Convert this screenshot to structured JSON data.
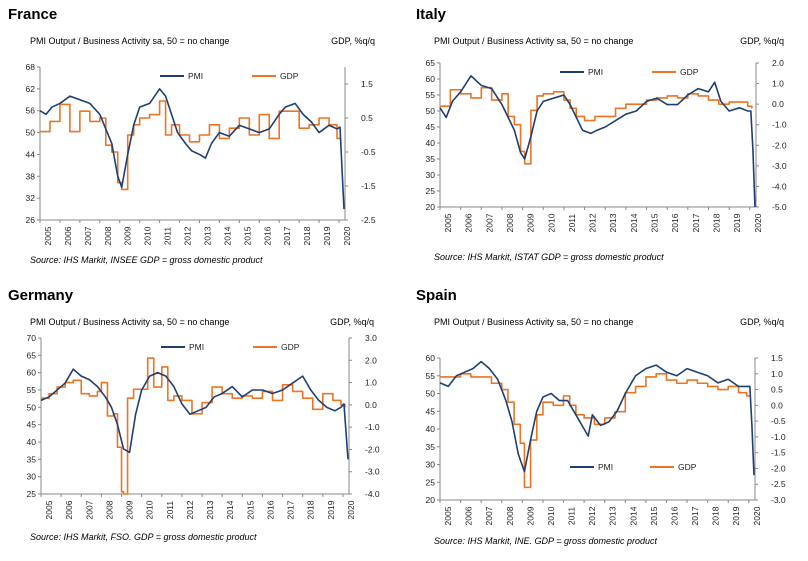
{
  "colors": {
    "pmi": "#1f3f73",
    "gdp": "#ec7424",
    "axis": "#888888"
  },
  "chart_data": [
    {
      "type": "line",
      "title": "France",
      "ylabel": "PMI Output  / Business Activity sa, 50 = no change",
      "y2label": "GDP, %q/q",
      "source": "Source: IHS Markit, INSEE GDP = gross domestic product",
      "ylim": [
        26,
        68
      ],
      "y_ticks": [
        26,
        32,
        38,
        44,
        50,
        56,
        62,
        68
      ],
      "y2lim": [
        -2.5,
        2.0
      ],
      "y2_ticks": [
        "1.5",
        "0.5",
        "-0.5",
        "-1.5",
        "-2.5"
      ],
      "y2_tick_values": [
        1.5,
        0.5,
        -0.5,
        -1.5,
        -2.5
      ],
      "x_ticks": [
        "2005",
        "2006",
        "2007",
        "2008",
        "2009",
        "2010",
        "2011",
        "2012",
        "2013",
        "2014",
        "2015",
        "2016",
        "2017",
        "2018",
        "2019",
        "2020"
      ],
      "xlim": [
        2005,
        2020.3
      ],
      "legend": "top",
      "series": [
        {
          "name": "PMI",
          "axis": "left",
          "x": [
            2005,
            2005.3,
            2005.6,
            2006,
            2006.5,
            2007,
            2007.5,
            2008,
            2008.3,
            2008.6,
            2008.9,
            2009.1,
            2009.4,
            2009.7,
            2010,
            2010.5,
            2011,
            2011.3,
            2011.6,
            2011.9,
            2012.3,
            2012.6,
            2013,
            2013.3,
            2013.6,
            2014,
            2014.5,
            2015,
            2015.5,
            2016,
            2016.5,
            2017,
            2017.3,
            2017.8,
            2018.2,
            2018.6,
            2019,
            2019.5,
            2019.9,
            2020.05,
            2020.15,
            2020.25
          ],
          "y": [
            56,
            55,
            57,
            58,
            60,
            59,
            58,
            55,
            51,
            47,
            38,
            35,
            44,
            52,
            57,
            58,
            62,
            60,
            55,
            50,
            47,
            45,
            44,
            43,
            47,
            50,
            49,
            52,
            51,
            50,
            51,
            55,
            57,
            58,
            55,
            53,
            50,
            52,
            51,
            51.5,
            40,
            29
          ]
        },
        {
          "name": "GDP",
          "axis": "right",
          "x": [
            2005,
            2005.5,
            2006,
            2006.5,
            2007,
            2007.5,
            2008,
            2008.3,
            2008.6,
            2008.9,
            2009.1,
            2009.4,
            2009.7,
            2010,
            2010.5,
            2011,
            2011.3,
            2011.6,
            2012,
            2012.5,
            2013,
            2013.5,
            2014,
            2014.5,
            2015,
            2015.5,
            2016,
            2016.5,
            2017,
            2017.5,
            2018,
            2018.5,
            2019,
            2019.5,
            2019.9,
            2020.1
          ],
          "y": [
            0.1,
            0.4,
            0.9,
            0.1,
            0.7,
            0.4,
            0.5,
            -0.3,
            -0.5,
            -1.4,
            -1.6,
            0.0,
            0.3,
            0.5,
            0.6,
            1.0,
            0.0,
            0.3,
            0.0,
            -0.2,
            0.0,
            0.3,
            -0.1,
            0.2,
            0.5,
            0.0,
            0.6,
            -0.1,
            0.7,
            0.7,
            0.2,
            0.3,
            0.5,
            0.3,
            -0.1,
            -0.1
          ]
        }
      ]
    },
    {
      "type": "line",
      "title": "Italy",
      "ylabel": "PMI Output  / Business Activity sa, 50 = no change",
      "y2label": "GDP, %q/q",
      "source": "Source: IHS Markit, ISTAT GDP = gross domestic product",
      "ylim": [
        20,
        65
      ],
      "y_ticks": [
        20,
        25,
        30,
        35,
        40,
        45,
        50,
        55,
        60,
        65
      ],
      "y2lim": [
        -5.0,
        2.0
      ],
      "y2_ticks": [
        "2.0",
        "1.0",
        "0.0",
        "-1.0",
        "-2.0",
        "-3.0",
        "-4.0",
        "-5.0"
      ],
      "y2_tick_values": [
        2.0,
        1.0,
        0.0,
        -1.0,
        -2.0,
        -3.0,
        -4.0,
        -5.0
      ],
      "x_ticks": [
        "2005",
        "2006",
        "2007",
        "2008",
        "2009",
        "2010",
        "2011",
        "2012",
        "2013",
        "2014",
        "2015",
        "2016",
        "2017",
        "2018",
        "2019",
        "2020"
      ],
      "xlim": [
        2005,
        2020.3
      ],
      "legend": "top",
      "series": [
        {
          "name": "PMI",
          "axis": "left",
          "x": [
            2005,
            2005.3,
            2005.6,
            2006,
            2006.5,
            2007,
            2007.5,
            2008,
            2008.3,
            2008.6,
            2008.9,
            2009.1,
            2009.4,
            2009.7,
            2010,
            2010.5,
            2011,
            2011.3,
            2011.6,
            2011.9,
            2012.3,
            2012.6,
            2013,
            2013.5,
            2014,
            2014.5,
            2015,
            2015.5,
            2016,
            2016.5,
            2017,
            2017.5,
            2018,
            2018.3,
            2018.6,
            2019,
            2019.5,
            2019.9,
            2020.05,
            2020.15,
            2020.25
          ],
          "y": [
            51,
            48,
            53,
            56,
            61,
            58,
            57,
            52,
            48,
            44,
            37,
            35,
            42,
            50,
            53,
            54,
            55,
            52,
            48,
            44,
            43,
            44,
            45,
            47,
            49,
            50,
            53,
            54,
            52,
            52,
            55,
            57,
            56,
            59,
            53,
            50,
            51,
            50,
            50,
            38,
            20
          ]
        },
        {
          "name": "GDP",
          "axis": "right",
          "x": [
            2005,
            2005.5,
            2006,
            2006.5,
            2007,
            2007.5,
            2008,
            2008.3,
            2008.6,
            2008.9,
            2009.1,
            2009.4,
            2009.7,
            2010,
            2010.5,
            2011,
            2011.3,
            2011.6,
            2012,
            2012.5,
            2013,
            2013.5,
            2014,
            2014.5,
            2015,
            2015.5,
            2016,
            2016.5,
            2017,
            2017.5,
            2018,
            2018.5,
            2019,
            2019.5,
            2019.9,
            2020.1
          ],
          "y": [
            -0.1,
            0.7,
            0.5,
            0.3,
            0.8,
            0.2,
            0.5,
            -0.6,
            -1.0,
            -2.3,
            -2.9,
            -0.3,
            0.4,
            0.5,
            0.6,
            0.2,
            -0.2,
            -0.6,
            -0.8,
            -0.6,
            -0.6,
            -0.2,
            0.0,
            0.0,
            0.2,
            0.3,
            0.4,
            0.3,
            0.5,
            0.4,
            0.2,
            0.0,
            0.1,
            0.1,
            -0.1,
            -0.2
          ]
        }
      ]
    },
    {
      "type": "line",
      "title": "Germany",
      "ylabel": "PMI Output  / Business Activity sa, 50 = no change",
      "y2label": "GDP, %q/q",
      "source": "Source: IHS Markit, FSO. GDP = gross domestic product",
      "ylim": [
        25,
        70
      ],
      "y_ticks": [
        25,
        30,
        35,
        40,
        45,
        50,
        55,
        60,
        65,
        70
      ],
      "y2lim": [
        -4.0,
        3.0
      ],
      "y2_ticks": [
        "3.0",
        "2.0",
        "1.0",
        "0.0",
        "-1.0",
        "-2.0",
        "-3.0",
        "-4.0"
      ],
      "y2_tick_values": [
        3.0,
        2.0,
        1.0,
        0.0,
        -1.0,
        -2.0,
        -3.0,
        -4.0
      ],
      "x_ticks": [
        "2005",
        "2006",
        "2007",
        "2008",
        "2009",
        "2010",
        "2011",
        "2012",
        "2013",
        "2014",
        "2015",
        "2016",
        "2017",
        "2018",
        "2019",
        "2020"
      ],
      "xlim": [
        2005,
        2020.3
      ],
      "legend": "top",
      "series": [
        {
          "name": "PMI",
          "axis": "left",
          "x": [
            2005,
            2005.4,
            2005.8,
            2006.2,
            2006.6,
            2007,
            2007.4,
            2007.8,
            2008.2,
            2008.5,
            2008.8,
            2009.1,
            2009.4,
            2009.7,
            2010,
            2010.4,
            2010.8,
            2011.2,
            2011.6,
            2012,
            2012.4,
            2012.8,
            2013.2,
            2013.6,
            2014,
            2014.5,
            2015,
            2015.5,
            2016,
            2016.5,
            2017,
            2017.5,
            2018,
            2018.4,
            2018.8,
            2019.2,
            2019.6,
            2019.9,
            2020.05,
            2020.15,
            2020.25
          ],
          "y": [
            52,
            53,
            55,
            57,
            61,
            59,
            58,
            56,
            53,
            50,
            45,
            38,
            37,
            48,
            55,
            59,
            60,
            59,
            56,
            51,
            48,
            49,
            50,
            53,
            54,
            56,
            53,
            55,
            55,
            54,
            55,
            57,
            59,
            55,
            52,
            50,
            49,
            50,
            51,
            43,
            35
          ]
        },
        {
          "name": "GDP",
          "axis": "right",
          "x": [
            2005,
            2005.4,
            2005.8,
            2006.2,
            2006.6,
            2007,
            2007.4,
            2007.8,
            2008,
            2008.3,
            2008.6,
            2008.8,
            2009,
            2009.1,
            2009.3,
            2009.6,
            2010,
            2010.3,
            2010.6,
            2011,
            2011.3,
            2011.6,
            2012,
            2012.5,
            2013,
            2013.5,
            2014,
            2014.5,
            2015,
            2015.5,
            2016,
            2016.5,
            2017,
            2017.5,
            2018,
            2018.5,
            2019,
            2019.5,
            2019.9,
            2020.1
          ],
          "y": [
            0.3,
            0.5,
            0.8,
            1.0,
            1.1,
            0.5,
            0.4,
            0.6,
            1.0,
            -0.5,
            -0.4,
            -1.9,
            -3.9,
            -4.0,
            0.3,
            0.7,
            0.7,
            2.1,
            0.8,
            1.7,
            0.2,
            0.4,
            0.2,
            -0.4,
            0.1,
            0.8,
            0.5,
            0.3,
            0.4,
            0.3,
            0.6,
            0.2,
            0.9,
            0.6,
            0.3,
            -0.2,
            0.5,
            0.2,
            0.0,
            -0.1
          ]
        }
      ]
    },
    {
      "type": "line",
      "title": "Spain",
      "ylabel": "PMI Output  / Business Activity sa, 50 = no change",
      "y2label": "GDP, %q/q",
      "source": "Source: IHS Markit, INE. GDP = gross domestic product",
      "ylim": [
        20,
        60
      ],
      "y_ticks": [
        20,
        25,
        30,
        35,
        40,
        45,
        50,
        55,
        60
      ],
      "y2lim": [
        -3.0,
        1.5
      ],
      "y2_ticks": [
        "1.5",
        "1.0",
        "0.5",
        "0.0",
        "-0.5",
        "-1.0",
        "-1.5",
        "-2.0",
        "-2.5",
        "-3.0"
      ],
      "y2_tick_values": [
        1.5,
        1.0,
        0.5,
        0.0,
        -0.5,
        -1.0,
        -1.5,
        -2.0,
        -2.5,
        -3.0
      ],
      "x_ticks": [
        "2005",
        "2006",
        "2007",
        "2008",
        "2009",
        "2010",
        "2011",
        "2012",
        "2013",
        "2014",
        "2015",
        "2016",
        "2017",
        "2018",
        "2019",
        "2020"
      ],
      "xlim": [
        2005,
        2020.3
      ],
      "legend": "bottom",
      "series": [
        {
          "name": "PMI",
          "axis": "left",
          "x": [
            2005,
            2005.4,
            2005.8,
            2006.2,
            2006.6,
            2007,
            2007.4,
            2007.8,
            2008.2,
            2008.5,
            2008.8,
            2009.1,
            2009.4,
            2009.7,
            2010,
            2010.4,
            2010.8,
            2011.2,
            2011.6,
            2012,
            2012.2,
            2012.4,
            2012.8,
            2013.2,
            2013.6,
            2014,
            2014.5,
            2015,
            2015.5,
            2016,
            2016.5,
            2017,
            2017.5,
            2018,
            2018.5,
            2019,
            2019.5,
            2019.9,
            2020.05,
            2020.15,
            2020.25
          ],
          "y": [
            53,
            52,
            55,
            56,
            57,
            59,
            57,
            54,
            48,
            42,
            33,
            28,
            37,
            45,
            49,
            50,
            48,
            48,
            44,
            40,
            38,
            44,
            41,
            42,
            45,
            50,
            55,
            57,
            58,
            56,
            55,
            57,
            56,
            55,
            53,
            54,
            52,
            52,
            52,
            41,
            27
          ]
        },
        {
          "name": "GDP",
          "axis": "right",
          "x": [
            2005,
            2005.5,
            2006,
            2006.5,
            2007,
            2007.5,
            2008,
            2008.3,
            2008.6,
            2008.9,
            2009.1,
            2009.4,
            2009.7,
            2010,
            2010.5,
            2011,
            2011.3,
            2011.6,
            2012,
            2012.5,
            2013,
            2013.5,
            2014,
            2014.5,
            2015,
            2015.5,
            2016,
            2016.5,
            2017,
            2017.5,
            2018,
            2018.5,
            2019,
            2019.5,
            2019.9,
            2020.1
          ],
          "y": [
            0.9,
            0.9,
            1.0,
            0.9,
            0.9,
            0.7,
            0.5,
            0.1,
            -0.6,
            -1.2,
            -2.6,
            -1.1,
            -0.3,
            0.1,
            0.0,
            0.3,
            0.0,
            -0.3,
            -0.4,
            -0.6,
            -0.4,
            -0.2,
            0.4,
            0.6,
            0.9,
            1.0,
            0.8,
            0.7,
            0.8,
            0.7,
            0.6,
            0.5,
            0.6,
            0.4,
            0.3,
            0.3
          ]
        }
      ]
    }
  ]
}
